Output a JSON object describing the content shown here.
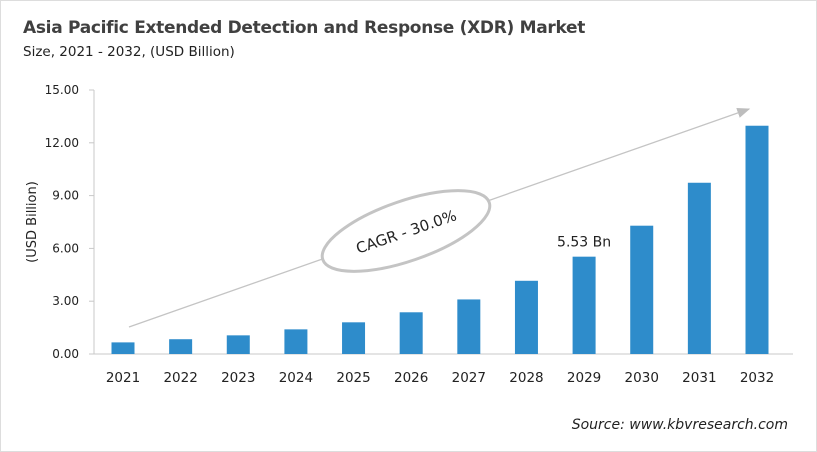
{
  "chart_data": {
    "type": "bar",
    "title": "Asia Pacific Extended Detection and Response (XDR) Market",
    "subtitle": "Size, 2021 - 2032, (USD Billion)",
    "ylabel": "(USD Billion)",
    "xlabel": "",
    "ylim": [
      0,
      15
    ],
    "yticks": [
      "0.00",
      "3.00",
      "6.00",
      "9.00",
      "12.00",
      "15.00"
    ],
    "categories": [
      "2021",
      "2022",
      "2023",
      "2024",
      "2025",
      "2026",
      "2027",
      "2028",
      "2029",
      "2030",
      "2031",
      "2032"
    ],
    "values": [
      0.66,
      0.84,
      1.06,
      1.4,
      1.8,
      2.37,
      3.1,
      4.16,
      5.53,
      7.29,
      9.73,
      12.97
    ],
    "data_labels": [
      {
        "category": "2029",
        "text": "5.53 Bn"
      }
    ],
    "annotation": "CAGR - 30.0%",
    "grid": false,
    "bar_color": "#2e8ccb"
  },
  "source": "Source: www.kbvresearch.com"
}
